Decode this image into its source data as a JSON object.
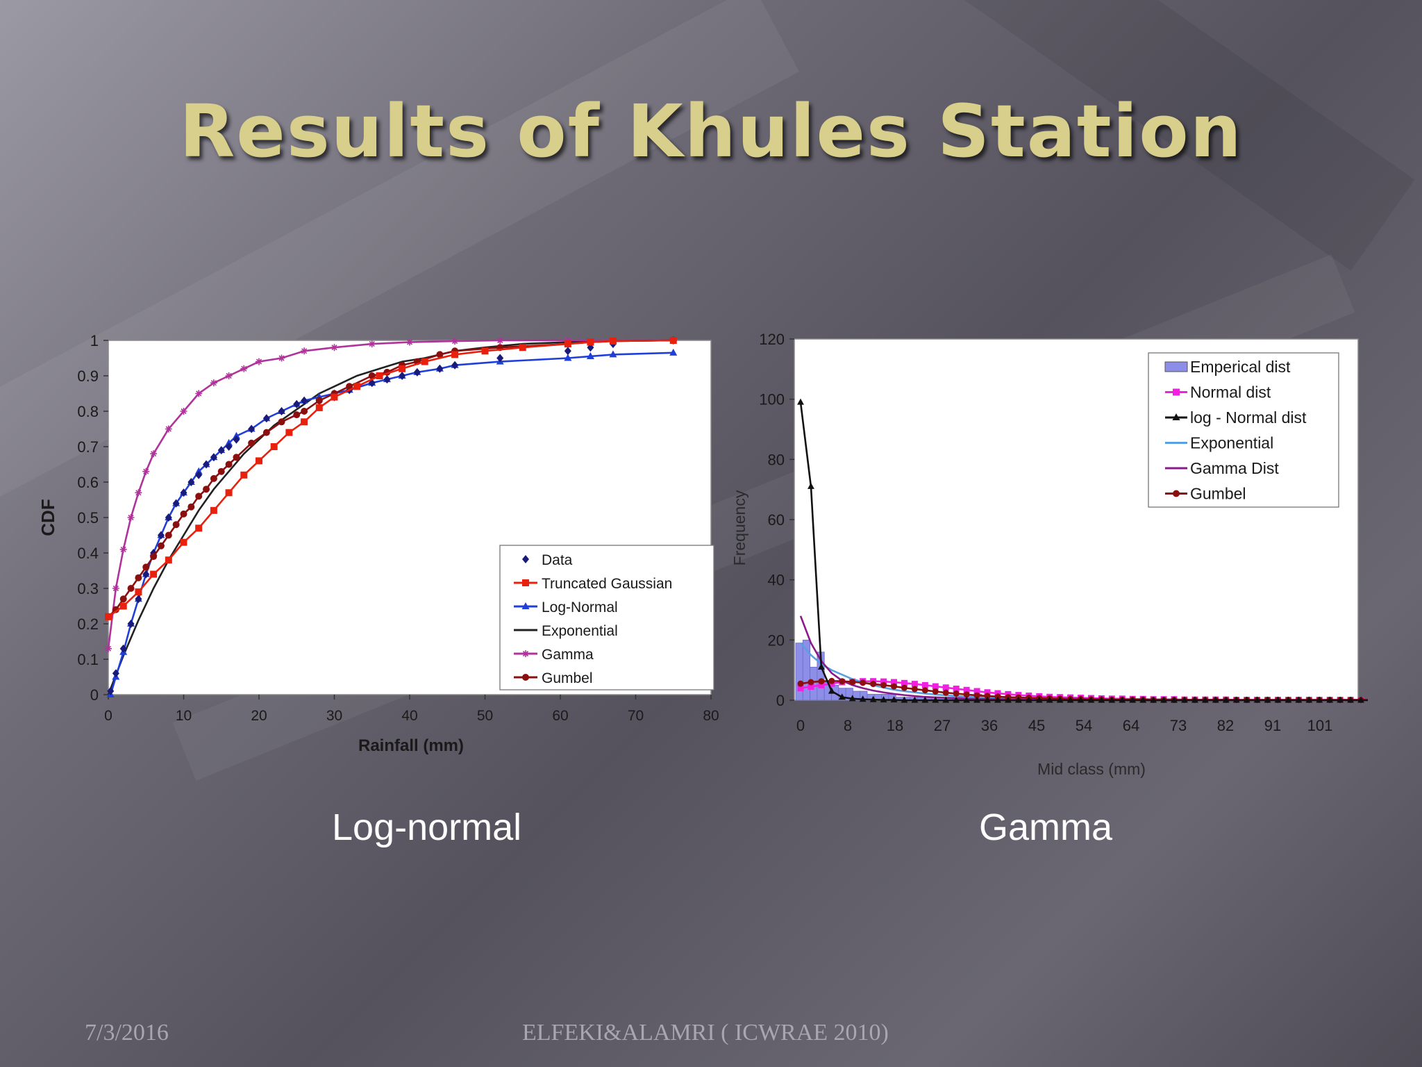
{
  "slide": {
    "title": "Results of Khules Station",
    "caption_left": "Log-normal",
    "caption_right": "Gamma",
    "footer_date": "7/3/2016",
    "footer_credit": "ELFEKI&ALAMRI ( ICWRAE 2010)"
  },
  "chart_data": [
    {
      "type": "line",
      "title": "",
      "xlabel": "Rainfall (mm)",
      "ylabel": "CDF",
      "xlim": [
        0,
        80
      ],
      "ylim": [
        0,
        1
      ],
      "x_ticks": [
        "0",
        "10",
        "20",
        "30",
        "40",
        "50",
        "60",
        "70",
        "80"
      ],
      "y_ticks": [
        "0",
        "0.1",
        "0.2",
        "0.3",
        "0.4",
        "0.5",
        "0.6",
        "0.7",
        "0.8",
        "0.9",
        "1"
      ],
      "legend_position": "bottom-right",
      "series": [
        {
          "name": "Data",
          "color": "#1a1a7a",
          "marker": "diamond",
          "line": false,
          "x": [
            0.3,
            1,
            2,
            3,
            4,
            5,
            6,
            7,
            8,
            9,
            10,
            11,
            12,
            13,
            14,
            15,
            16,
            17,
            19,
            21,
            23,
            25,
            26,
            28,
            30,
            32,
            35,
            37,
            39,
            41,
            44,
            46,
            52,
            61,
            64,
            67,
            75
          ],
          "y": [
            0.01,
            0.06,
            0.13,
            0.2,
            0.27,
            0.34,
            0.4,
            0.45,
            0.5,
            0.54,
            0.57,
            0.6,
            0.62,
            0.65,
            0.67,
            0.69,
            0.7,
            0.72,
            0.75,
            0.78,
            0.8,
            0.82,
            0.83,
            0.83,
            0.84,
            0.86,
            0.88,
            0.89,
            0.9,
            0.91,
            0.92,
            0.93,
            0.95,
            0.97,
            0.98,
            0.99,
            1.0
          ]
        },
        {
          "name": "Truncated Gaussian",
          "color": "#e8200e",
          "marker": "square",
          "line": true,
          "x": [
            0,
            2,
            4,
            6,
            8,
            10,
            12,
            14,
            16,
            18,
            20,
            22,
            24,
            26,
            28,
            30,
            33,
            36,
            39,
            42,
            46,
            50,
            55,
            61,
            64,
            67,
            75
          ],
          "y": [
            0.22,
            0.25,
            0.29,
            0.34,
            0.38,
            0.43,
            0.47,
            0.52,
            0.57,
            0.62,
            0.66,
            0.7,
            0.74,
            0.77,
            0.81,
            0.84,
            0.87,
            0.9,
            0.92,
            0.94,
            0.96,
            0.97,
            0.98,
            0.99,
            0.995,
            0.998,
            1.0
          ]
        },
        {
          "name": "Log-Normal",
          "color": "#1f3fd8",
          "marker": "triangle",
          "line": true,
          "x": [
            0.3,
            1,
            2,
            3,
            4,
            5,
            6,
            7,
            8,
            9,
            10,
            11,
            12,
            13,
            14,
            15,
            16,
            17,
            19,
            21,
            23,
            25,
            26,
            28,
            30,
            32,
            35,
            37,
            39,
            41,
            44,
            46,
            52,
            61,
            64,
            67,
            75
          ],
          "y": [
            0.0,
            0.05,
            0.12,
            0.2,
            0.27,
            0.34,
            0.4,
            0.45,
            0.5,
            0.54,
            0.57,
            0.6,
            0.63,
            0.65,
            0.67,
            0.69,
            0.71,
            0.73,
            0.75,
            0.78,
            0.8,
            0.82,
            0.83,
            0.84,
            0.85,
            0.86,
            0.88,
            0.89,
            0.9,
            0.91,
            0.92,
            0.93,
            0.94,
            0.95,
            0.955,
            0.96,
            0.965
          ]
        },
        {
          "name": "Exponential",
          "color": "#222222",
          "marker": "none",
          "line": true,
          "x": [
            0,
            2,
            4,
            6,
            8,
            10,
            12,
            14,
            16,
            18,
            20,
            22,
            24,
            26,
            28,
            30,
            33,
            36,
            39,
            42,
            46,
            50,
            55,
            61,
            64,
            67,
            75
          ],
          "y": [
            0.0,
            0.11,
            0.21,
            0.3,
            0.38,
            0.45,
            0.52,
            0.58,
            0.63,
            0.68,
            0.72,
            0.76,
            0.79,
            0.82,
            0.85,
            0.87,
            0.9,
            0.92,
            0.94,
            0.95,
            0.97,
            0.98,
            0.99,
            0.995,
            0.997,
            0.998,
            1.0
          ]
        },
        {
          "name": "Gamma",
          "color": "#b0329a",
          "marker": "star",
          "line": true,
          "x": [
            0,
            1,
            2,
            3,
            4,
            5,
            6,
            8,
            10,
            12,
            14,
            16,
            18,
            20,
            23,
            26,
            30,
            35,
            40,
            46,
            52,
            61,
            67,
            75
          ],
          "y": [
            0.13,
            0.3,
            0.41,
            0.5,
            0.57,
            0.63,
            0.68,
            0.75,
            0.8,
            0.85,
            0.88,
            0.9,
            0.92,
            0.94,
            0.95,
            0.97,
            0.98,
            0.99,
            0.995,
            0.998,
            1.0,
            1.0,
            1.0,
            1.0
          ]
        },
        {
          "name": "Gumbel",
          "color": "#8b0f0f",
          "marker": "circle",
          "line": true,
          "x": [
            0,
            1,
            2,
            3,
            4,
            5,
            6,
            7,
            8,
            9,
            10,
            11,
            12,
            13,
            14,
            15,
            16,
            17,
            19,
            21,
            23,
            25,
            26,
            28,
            30,
            32,
            35,
            37,
            39,
            41,
            44,
            46,
            52,
            61,
            64,
            67,
            75
          ],
          "y": [
            0.22,
            0.24,
            0.27,
            0.3,
            0.33,
            0.36,
            0.39,
            0.42,
            0.45,
            0.48,
            0.51,
            0.53,
            0.56,
            0.58,
            0.61,
            0.63,
            0.65,
            0.67,
            0.71,
            0.74,
            0.77,
            0.79,
            0.8,
            0.83,
            0.85,
            0.87,
            0.9,
            0.91,
            0.93,
            0.94,
            0.96,
            0.97,
            0.98,
            0.99,
            0.995,
            0.998,
            1.0
          ]
        }
      ]
    },
    {
      "type": "bar",
      "title": "",
      "xlabel": "Mid class   (mm)",
      "ylabel": "Frequency",
      "ylim": [
        0,
        120
      ],
      "x_ticks": [
        "0",
        "8",
        "18",
        "27",
        "36",
        "45",
        "54",
        "64",
        "73",
        "82",
        "91",
        "101"
      ],
      "y_ticks": [
        "0",
        "20",
        "40",
        "60",
        "80",
        "100",
        "120"
      ],
      "legend_position": "top-right",
      "bars": {
        "name": "Emperical dist",
        "color": "#8c8ee8",
        "values": [
          19,
          20,
          11,
          16,
          6,
          5,
          4,
          4,
          3,
          3,
          2,
          2,
          2,
          2,
          1,
          1,
          1,
          1,
          1,
          1,
          1,
          1,
          1,
          1,
          1,
          2,
          1,
          1,
          1,
          1,
          1,
          0,
          0,
          0,
          0,
          0,
          0,
          0,
          0,
          0,
          0,
          0,
          0,
          0,
          0,
          0,
          0,
          0,
          0,
          0,
          0,
          0,
          0,
          0,
          0,
          0,
          0,
          0,
          0,
          0,
          0,
          0,
          0,
          0,
          0,
          0,
          0,
          0,
          0,
          0
        ]
      },
      "series": [
        {
          "name": "Normal dist",
          "color": "#f020e0",
          "marker": "square",
          "x": [
            0,
            2,
            4,
            6,
            8,
            10,
            12,
            14,
            16,
            18,
            20,
            22,
            24,
            26,
            28,
            30,
            32,
            34,
            36,
            38,
            40,
            42,
            44,
            46,
            48,
            50,
            52,
            54,
            56,
            58,
            60,
            62,
            64,
            66,
            68,
            70,
            72,
            74,
            76,
            78,
            80,
            82,
            84,
            86,
            88,
            90,
            92,
            94,
            96,
            98,
            100,
            102,
            104,
            106,
            108,
            110
          ],
          "y": [
            4,
            4.5,
            5,
            5.5,
            6,
            6.2,
            6.3,
            6.3,
            6.2,
            6,
            5.7,
            5.4,
            5,
            4.6,
            4.2,
            3.8,
            3.4,
            3,
            2.6,
            2.3,
            2,
            1.7,
            1.5,
            1.3,
            1.1,
            1,
            0.9,
            0.8,
            0.7,
            0.6,
            0.5,
            0.5,
            0.4,
            0.4,
            0.3,
            0.3,
            0.3,
            0.2,
            0.2,
            0.2,
            0.2,
            0.2,
            0.1,
            0.1,
            0.1,
            0.1,
            0.1,
            0.1,
            0.1,
            0.1,
            0.1,
            0.1,
            0.1,
            0.1,
            0.1,
            0.1
          ]
        },
        {
          "name": "log - Normal dist",
          "color": "#111111",
          "marker": "triangle",
          "x": [
            0,
            2,
            4,
            6,
            8,
            10,
            12,
            14,
            16,
            18,
            20,
            22,
            24,
            26,
            28,
            30,
            32,
            34,
            36,
            38,
            40,
            42,
            44,
            46,
            48,
            50,
            52,
            54,
            56,
            58,
            60,
            62,
            64,
            66,
            68,
            70,
            72,
            74,
            76,
            78,
            80,
            82,
            84,
            86,
            88,
            90,
            92,
            94,
            96,
            98,
            100,
            102,
            104,
            106,
            108,
            110
          ],
          "y": [
            99,
            71,
            11,
            3,
            1,
            0.5,
            0.3,
            0.2,
            0.1,
            0.1,
            0,
            0,
            0,
            0,
            0,
            0,
            0,
            0,
            0,
            0,
            0,
            0,
            0,
            0,
            0,
            0,
            0,
            0,
            0,
            0,
            0,
            0,
            0,
            0,
            0,
            0,
            0,
            0,
            0,
            0,
            0,
            0,
            0,
            0,
            0,
            0,
            0,
            0,
            0,
            0,
            0,
            0,
            0,
            0,
            0,
            0
          ]
        },
        {
          "name": "Exponential",
          "color": "#5aa0e0",
          "marker": "none",
          "x": [
            0,
            2,
            4,
            6,
            8,
            10,
            12,
            14,
            16,
            18,
            20,
            24,
            28,
            32,
            36,
            40,
            45,
            50,
            55,
            60,
            65,
            70,
            80,
            90,
            100,
            110
          ],
          "y": [
            19,
            15,
            12,
            10,
            8.5,
            7,
            6,
            5,
            4.2,
            3.5,
            3,
            2.2,
            1.6,
            1.2,
            0.9,
            0.7,
            0.5,
            0.35,
            0.25,
            0.2,
            0.15,
            0.1,
            0.05,
            0,
            0,
            0
          ]
        },
        {
          "name": "Gamma Dist",
          "color": "#8a1a8a",
          "marker": "none",
          "x": [
            0,
            2,
            4,
            6,
            8,
            10,
            12,
            14,
            16,
            18,
            20,
            24,
            28,
            32,
            36,
            40,
            45,
            50,
            60,
            70,
            80,
            90,
            100,
            110
          ],
          "y": [
            28,
            19,
            13,
            9,
            6.5,
            5,
            4,
            3.2,
            2.6,
            2.1,
            1.7,
            1.1,
            0.8,
            0.5,
            0.4,
            0.3,
            0.2,
            0.1,
            0.05,
            0,
            0,
            0,
            0,
            0
          ]
        },
        {
          "name": "Gumbel",
          "color": "#8b0f0f",
          "marker": "circle",
          "x": [
            0,
            2,
            4,
            6,
            8,
            10,
            12,
            14,
            16,
            18,
            20,
            22,
            24,
            26,
            28,
            30,
            32,
            34,
            36,
            38,
            40,
            42,
            44,
            46,
            48,
            50,
            52,
            54,
            56,
            58,
            60,
            62,
            64,
            66,
            68,
            70,
            72,
            74,
            76,
            78,
            80,
            82,
            84,
            86,
            88,
            90,
            92,
            94,
            96,
            98,
            100,
            102,
            104,
            106,
            108,
            110
          ],
          "y": [
            5.5,
            6,
            6.3,
            6.4,
            6.3,
            6.1,
            5.8,
            5.4,
            5,
            4.6,
            4.1,
            3.7,
            3.3,
            2.9,
            2.5,
            2.2,
            1.9,
            1.6,
            1.4,
            1.2,
            1,
            0.9,
            0.8,
            0.7,
            0.6,
            0.5,
            0.4,
            0.4,
            0.3,
            0.3,
            0.2,
            0.2,
            0.2,
            0.2,
            0.1,
            0.1,
            0.1,
            0.1,
            0.1,
            0.1,
            0.1,
            0.1,
            0.1,
            0.1,
            0.1,
            0.1,
            0.1,
            0.1,
            0.1,
            0.1,
            0.1,
            0.1,
            0.1,
            0.1,
            0.1,
            0.1
          ]
        }
      ]
    }
  ]
}
